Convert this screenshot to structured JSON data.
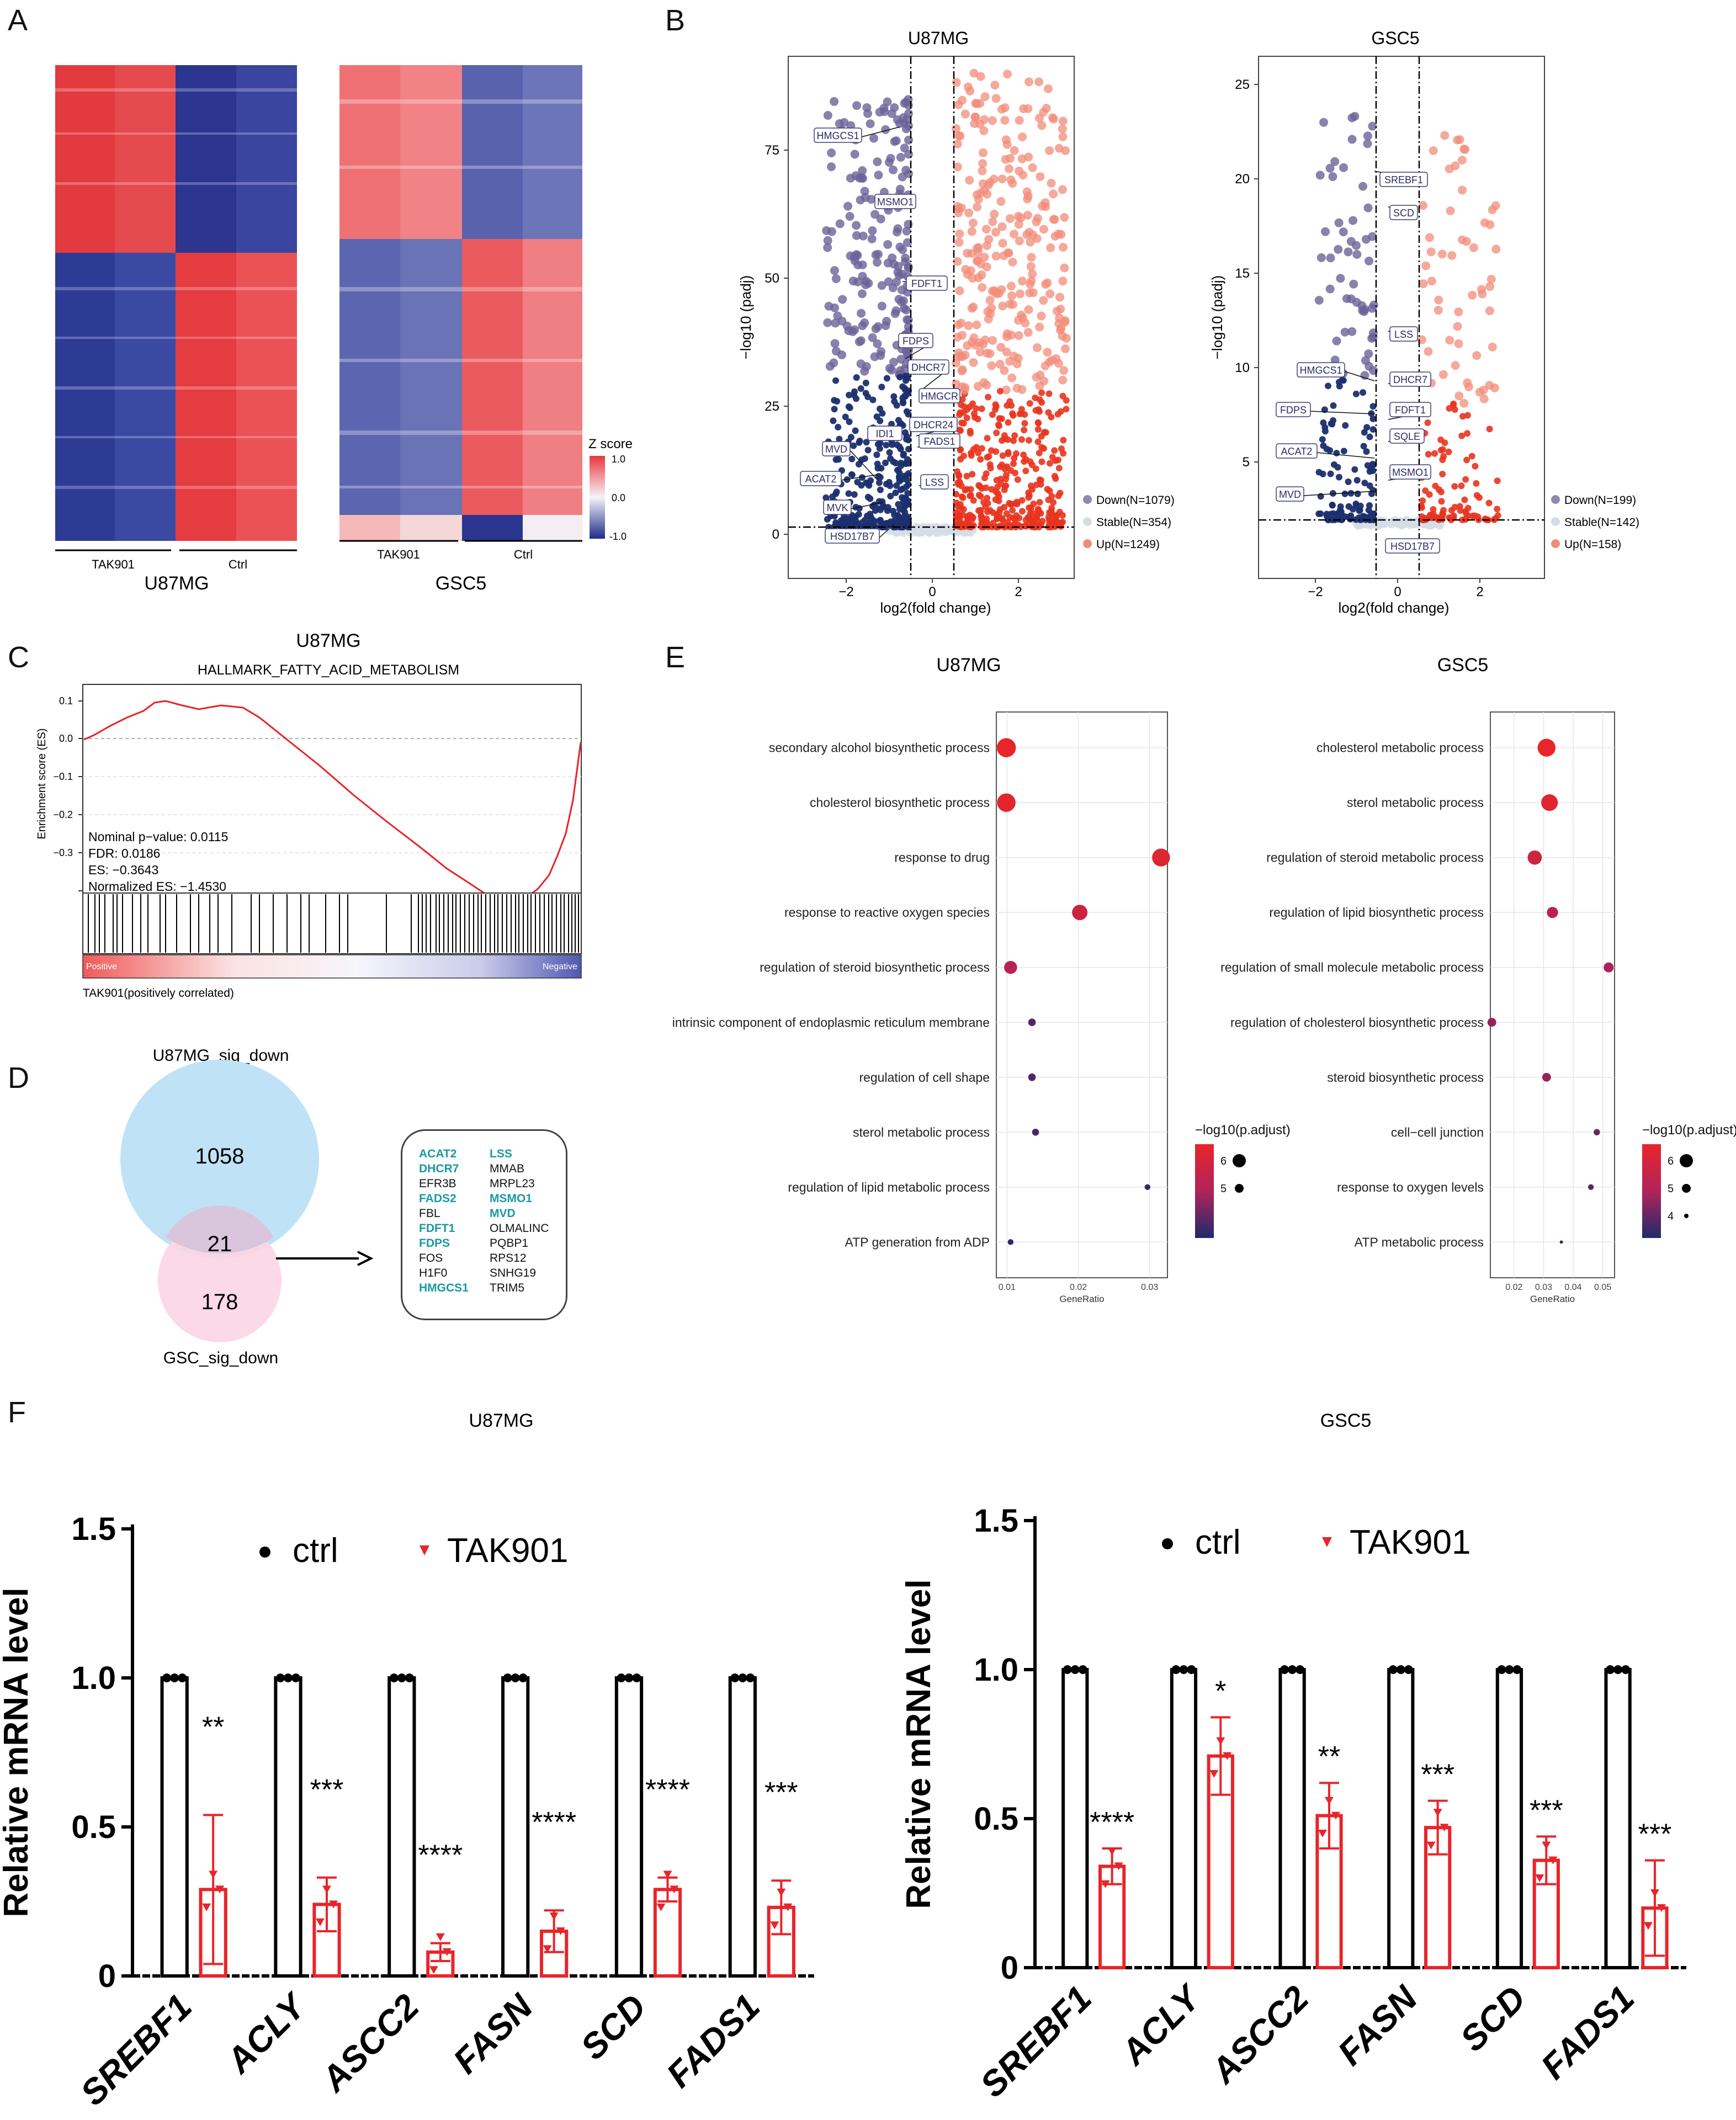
{
  "panels": {
    "A": "A",
    "B": "B",
    "C": "C",
    "D": "D",
    "E": "E",
    "F": "F"
  },
  "heatmap": {
    "u87": {
      "title": "U87MG",
      "groups": [
        "TAK901",
        "Ctrl"
      ]
    },
    "gsc5": {
      "title": "GSC5",
      "groups": [
        "TAK901",
        "Ctrl"
      ]
    },
    "legend": {
      "title": "Z score",
      "ticks": [
        "1.0",
        "0.0",
        "-1.0"
      ]
    },
    "colors": {
      "high": "#e8383d",
      "mid": "#f4f4fa",
      "low": "#1f2a8a"
    }
  },
  "volcano": [
    {
      "title": "U87MG",
      "xlabel": "log2(fold change)",
      "ylabel": "−log10 (padj)",
      "xticks": [
        "−2",
        "0",
        "2"
      ],
      "yticks": [
        "0",
        "25",
        "50",
        "75"
      ],
      "legend": [
        "Down(N=1079)",
        "Stable(N=354)",
        "Up(N=1249)"
      ],
      "genes": [
        "HMGCS1",
        "MSMO1",
        "FDFT1",
        "FDPS",
        "DHCR7",
        "HMGCR",
        "DHCR24",
        "IDI1",
        "FADS1",
        "MVD",
        "ACAT2",
        "LSS",
        "MVK",
        "HSD17B7"
      ]
    },
    {
      "title": "GSC5",
      "xlabel": "log2(fold change)",
      "ylabel": "−log10 (padj)",
      "xticks": [
        "−2",
        "0",
        "2"
      ],
      "yticks": [
        "5",
        "10",
        "15",
        "20",
        "25"
      ],
      "legend": [
        "Down(N=199)",
        "Stable(N=142)",
        "Up(N=158)"
      ],
      "genes": [
        "SREBF1",
        "SCD",
        "LSS",
        "HMGCS1",
        "DHCR7",
        "FDPS",
        "FDFT1",
        "SQLE",
        "ACAT2",
        "MSMO1",
        "MVD",
        "HSD17B7"
      ]
    }
  ],
  "gsea": {
    "title": "U87MG",
    "subtitle": "HALLMARK_FATTY_ACID_METABOLISM",
    "ylabel": "Enrichment score (ES)",
    "yticks": [
      "0.1",
      "0.0",
      "−0.1",
      "−0.2",
      "−0.3"
    ],
    "stats": [
      "Nominal p−value: 0.0115",
      "FDR: 0.0186",
      "ES: −0.3643",
      "Normalized ES: −1.4530"
    ],
    "bar_positive": "Positive",
    "bar_negative": "Negative",
    "footnote": "TAK901(positively correlated)"
  },
  "venn": {
    "top_label": "U87MG_sig_down",
    "bottom_label": "GSC_sig_down",
    "top_only": "1058",
    "overlap": "21",
    "bottom_only": "178",
    "genes_col1": [
      {
        "name": "ACAT2",
        "hl": true
      },
      {
        "name": "DHCR7",
        "hl": true
      },
      {
        "name": "EFR3B",
        "hl": false
      },
      {
        "name": "FADS2",
        "hl": true
      },
      {
        "name": "FBL",
        "hl": false
      },
      {
        "name": "FDFT1",
        "hl": true
      },
      {
        "name": "FDPS",
        "hl": true
      },
      {
        "name": "FOS",
        "hl": false
      },
      {
        "name": "H1F0",
        "hl": false
      },
      {
        "name": "HMGCS1",
        "hl": true
      }
    ],
    "genes_col2": [
      {
        "name": "LSS",
        "hl": true
      },
      {
        "name": "MMAB",
        "hl": false
      },
      {
        "name": "MRPL23",
        "hl": false
      },
      {
        "name": "MSMO1",
        "hl": true
      },
      {
        "name": "MVD",
        "hl": true
      },
      {
        "name": "OLMALINC",
        "hl": false
      },
      {
        "name": "PQBP1",
        "hl": false
      },
      {
        "name": "RPS12",
        "hl": false
      },
      {
        "name": "SNHG19",
        "hl": false
      },
      {
        "name": "TRIM5",
        "hl": false
      }
    ]
  },
  "go": [
    {
      "title": "U87MG",
      "xlabel": "GeneRatio",
      "xticks": [
        "0.01",
        "0.02",
        "0.03"
      ],
      "legend_title": "−log10(p.adjust)",
      "legend_ticks": [
        "6",
        "5"
      ],
      "terms": [
        {
          "term": "secondary alcohol biosynthetic process",
          "ratio": 0.0099,
          "padj": 6.6
        },
        {
          "term": "cholesterol biosynthetic process",
          "ratio": 0.0099,
          "padj": 6.5
        },
        {
          "term": "response to drug",
          "ratio": 0.0316,
          "padj": 6.4
        },
        {
          "term": "response to reactive oxygen species",
          "ratio": 0.0202,
          "padj": 6.0
        },
        {
          "term": "regulation of steroid biosynthetic process",
          "ratio": 0.0105,
          "padj": 5.6
        },
        {
          "term": "intrinsic component of endoplasmic reticulum membrane",
          "ratio": 0.0135,
          "padj": 4.7
        },
        {
          "term": "regulation of cell shape",
          "ratio": 0.0135,
          "padj": 4.7
        },
        {
          "term": "sterol metabolic process",
          "ratio": 0.014,
          "padj": 4.6
        },
        {
          "term": "regulation of lipid metabolic process",
          "ratio": 0.0297,
          "padj": 4.4
        },
        {
          "term": "ATP generation from ADP",
          "ratio": 0.0105,
          "padj": 4.4
        }
      ]
    },
    {
      "title": "GSC5",
      "xlabel": "GeneRatio",
      "xticks": [
        "0.02",
        "0.03",
        "0.04",
        "0.05"
      ],
      "legend_title": "−log10(p.adjust)",
      "legend_ticks": [
        "6",
        "5",
        "4"
      ],
      "terms": [
        {
          "term": "cholesterol metabolic process",
          "ratio": 0.031,
          "padj": 6.4
        },
        {
          "term": "sterol metabolic process",
          "ratio": 0.032,
          "padj": 6.2
        },
        {
          "term": "regulation of steroid metabolic process",
          "ratio": 0.027,
          "padj": 5.8
        },
        {
          "term": "regulation of lipid biosynthetic process",
          "ratio": 0.033,
          "padj": 5.3
        },
        {
          "term": "regulation of small molecule metabolic process",
          "ratio": 0.052,
          "padj": 5.1
        },
        {
          "term": "regulation of cholesterol biosynthetic process",
          "ratio": 0.0125,
          "padj": 4.9
        },
        {
          "term": "steroid biosynthetic process",
          "ratio": 0.031,
          "padj": 4.9
        },
        {
          "term": "cell−cell junction",
          "ratio": 0.048,
          "padj": 4.5
        },
        {
          "term": "response to oxygen levels",
          "ratio": 0.046,
          "padj": 4.4
        },
        {
          "term": "ATP metabolic process",
          "ratio": 0.036,
          "padj": 4.0
        }
      ]
    }
  ],
  "chart_data": [
    {
      "type": "bar",
      "title": "U87MG",
      "ylabel": "Relative mRNA level",
      "ylim": [
        0,
        1.5
      ],
      "yticks": [
        "0",
        "0.5",
        "1.0",
        "1.5"
      ],
      "categories": [
        "SREBF1",
        "ACLY",
        "ASCC2",
        "FASN",
        "SCD",
        "FADS1"
      ],
      "series": [
        {
          "name": "ctrl",
          "values": [
            1.0,
            1.0,
            1.0,
            1.0,
            1.0,
            1.0
          ]
        },
        {
          "name": "TAK901",
          "values": [
            0.29,
            0.24,
            0.08,
            0.15,
            0.29,
            0.23
          ],
          "errors": [
            0.25,
            0.09,
            0.03,
            0.07,
            0.04,
            0.09
          ]
        }
      ],
      "significance": [
        "**",
        "***",
        "****",
        "****",
        "****",
        "***"
      ]
    },
    {
      "type": "bar",
      "title": "GSC5",
      "ylabel": "Relative mRNA level",
      "ylim": [
        0,
        1.5
      ],
      "yticks": [
        "0",
        "0.5",
        "1.0",
        "1.5"
      ],
      "categories": [
        "SREBF1",
        "ACLY",
        "ASCC2",
        "FASN",
        "SCD",
        "FADS1"
      ],
      "series": [
        {
          "name": "ctrl",
          "values": [
            1.0,
            1.0,
            1.0,
            1.0,
            1.0,
            1.0
          ]
        },
        {
          "name": "TAK901",
          "values": [
            0.34,
            0.71,
            0.51,
            0.47,
            0.36,
            0.2
          ],
          "errors": [
            0.06,
            0.13,
            0.11,
            0.09,
            0.08,
            0.16
          ]
        }
      ],
      "significance": [
        "****",
        "*",
        "**",
        "***",
        "***",
        "***"
      ]
    }
  ]
}
